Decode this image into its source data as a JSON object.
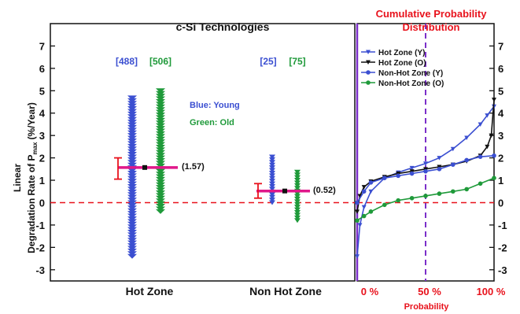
{
  "colors": {
    "blue": "#3b4fd1",
    "green": "#1f9a3a",
    "red": "#e8121c",
    "magenta": "#e0188a",
    "purple": "#7b2fc9",
    "black": "#111111"
  },
  "chart_data": [
    {
      "type": "scatter",
      "title": "c-Si Technologies",
      "ylabel_line1": "Linear",
      "ylabel_line2": "Degradation Rate of P",
      "ylabel_sub": "max",
      "ylabel_unit": "(%/Year)",
      "ylim": [
        -3.5,
        8
      ],
      "yticks": [
        -3,
        -2,
        -1,
        0,
        1,
        2,
        3,
        4,
        5,
        6,
        7
      ],
      "categories": [
        "Hot Zone",
        "Non Hot Zone"
      ],
      "counts": [
        {
          "young": "[488]",
          "old": "[506]"
        },
        {
          "young": "[25]",
          "old": "[75]"
        }
      ],
      "legend_note": {
        "blue": "Blue: Young",
        "green": "Green: Old"
      },
      "series": [
        {
          "name": "Young",
          "color": "blue",
          "groups": [
            {
              "category": "Hot Zone",
              "min": -2.4,
              "max": 4.7
            },
            {
              "category": "Non Hot Zone",
              "min": 0.0,
              "max": 2.1
            }
          ]
        },
        {
          "name": "Old",
          "color": "green",
          "groups": [
            {
              "category": "Hot Zone",
              "min": -0.4,
              "max": 5.1
            },
            {
              "category": "Non Hot Zone",
              "min": -0.8,
              "max": 1.4
            }
          ]
        }
      ],
      "summary": [
        {
          "category": "Hot Zone",
          "mean": 1.57,
          "label": "(1.57)",
          "err_low": 1.05,
          "err_high": 2.0
        },
        {
          "category": "Non Hot Zone",
          "mean": 0.52,
          "label": "(0.52)",
          "err_low": 0.2,
          "err_high": 0.85
        }
      ],
      "reference_line": 0
    },
    {
      "type": "line",
      "title_line1": "Cumulative Probability",
      "title_line2": "Distribution",
      "xlabel": "Probability",
      "xticks": [
        "0 %",
        "50 %",
        "100 %"
      ],
      "ylim": [
        -3.5,
        8
      ],
      "yticks": [
        -3,
        -2,
        -1,
        0,
        1,
        2,
        3,
        4,
        5,
        6,
        7
      ],
      "marker_line_x": 0.5,
      "series": [
        {
          "name": "Hot Zone (Y)",
          "color": "blue",
          "marker": "triangle-down",
          "x": [
            0.0,
            0.02,
            0.05,
            0.1,
            0.2,
            0.3,
            0.4,
            0.5,
            0.6,
            0.7,
            0.8,
            0.9,
            0.95,
            1.0
          ],
          "y": [
            -2.4,
            -1.0,
            -0.2,
            0.5,
            1.1,
            1.35,
            1.55,
            1.75,
            2.0,
            2.4,
            2.9,
            3.5,
            3.9,
            4.3
          ]
        },
        {
          "name": "Hot Zone (O)",
          "color": "black",
          "marker": "triangle-down",
          "x": [
            0.0,
            0.02,
            0.05,
            0.1,
            0.2,
            0.3,
            0.4,
            0.5,
            0.6,
            0.7,
            0.8,
            0.9,
            0.95,
            0.98,
            1.0
          ],
          "y": [
            -0.4,
            0.3,
            0.7,
            0.95,
            1.15,
            1.3,
            1.4,
            1.5,
            1.6,
            1.7,
            1.85,
            2.1,
            2.5,
            3.0,
            4.6
          ]
        },
        {
          "name": "Non-Hot Zone (Y)",
          "color": "blue",
          "marker": "circle",
          "x": [
            0.0,
            0.05,
            0.1,
            0.2,
            0.3,
            0.4,
            0.5,
            0.6,
            0.7,
            0.8,
            0.9,
            1.0
          ],
          "y": [
            0.0,
            0.5,
            0.9,
            1.1,
            1.2,
            1.3,
            1.4,
            1.5,
            1.7,
            1.9,
            2.05,
            2.1
          ]
        },
        {
          "name": "Non-Hot Zone (O)",
          "color": "green",
          "marker": "circle",
          "x": [
            0.0,
            0.05,
            0.1,
            0.2,
            0.3,
            0.4,
            0.5,
            0.6,
            0.7,
            0.8,
            0.9,
            1.0
          ],
          "y": [
            -0.8,
            -0.6,
            -0.4,
            -0.1,
            0.1,
            0.2,
            0.3,
            0.4,
            0.5,
            0.6,
            0.85,
            1.1
          ]
        }
      ],
      "reference_line": 0
    }
  ]
}
